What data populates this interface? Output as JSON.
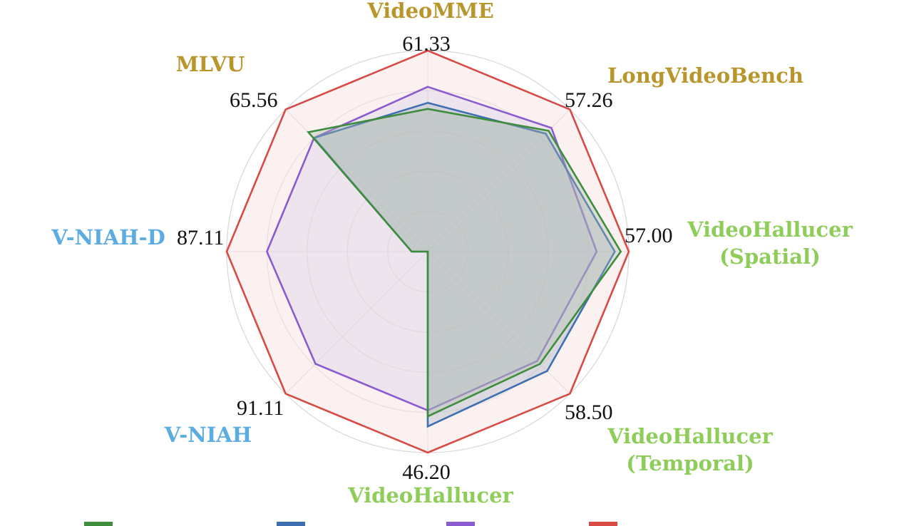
{
  "chart_data": {
    "type": "radar",
    "axes": [
      {
        "label_lines": [
          "VideoMME"
        ],
        "max_label": "61.33",
        "color": "#b9962c"
      },
      {
        "label_lines": [
          "LongVideoBench"
        ],
        "max_label": "57.26",
        "color": "#b9962c"
      },
      {
        "label_lines": [
          "VideoHallucer",
          "(Spatial)"
        ],
        "max_label": "57.00",
        "color": "#8fcd5a"
      },
      {
        "label_lines": [
          "VideoHallucer",
          "(Temporal)"
        ],
        "max_label": "58.50",
        "color": "#8fcd5a"
      },
      {
        "label_lines": [
          "VideoHallucer"
        ],
        "max_label": "46.20",
        "color": "#8fcd5a"
      },
      {
        "label_lines": [
          "V-NIAH"
        ],
        "max_label": "91.11",
        "color": "#5aace2"
      },
      {
        "label_lines": [
          "V-NIAH-D"
        ],
        "max_label": "87.11",
        "color": "#5aace2"
      },
      {
        "label_lines": [
          "MLVU"
        ],
        "max_label": "65.56",
        "color": "#b9962c"
      }
    ],
    "series": [
      {
        "color": "#3d8d3d",
        "fill": "#a9b9a4",
        "values": [
          0.71,
          0.85,
          0.96,
          0.79,
          0.82,
          0.0,
          0.08,
          0.84
        ]
      },
      {
        "color": "#3f6fb3",
        "fill": "#a2afc2",
        "values": [
          0.74,
          0.83,
          0.93,
          0.84,
          0.87,
          0.0,
          0.08,
          0.8
        ]
      },
      {
        "color": "#8a5cd0",
        "fill": "#d5cbe6",
        "values": [
          0.82,
          0.87,
          0.84,
          0.77,
          0.79,
          0.79,
          0.8,
          0.8
        ]
      },
      {
        "color": "#d84a45",
        "fill": "#f7e6e6",
        "values": [
          1.0,
          1.0,
          1.0,
          1.0,
          1.0,
          1.0,
          1.0,
          1.0
        ]
      }
    ]
  }
}
